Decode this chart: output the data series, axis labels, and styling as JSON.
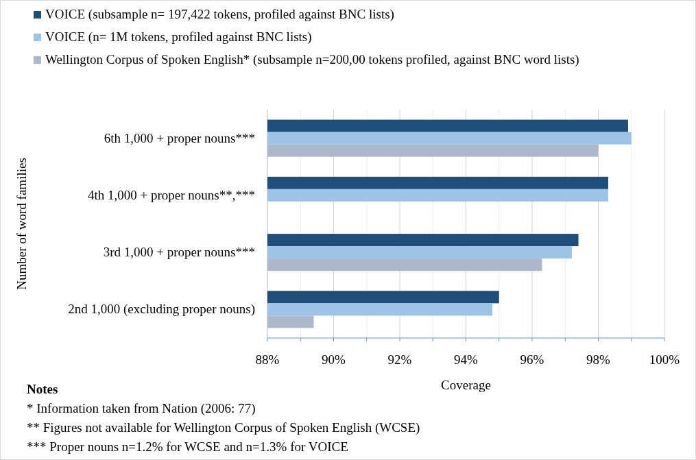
{
  "chart_data": {
    "type": "bar",
    "orientation": "horizontal",
    "categories": [
      "6th 1,000 + proper nouns***",
      "4th 1,000 + proper nouns**,***",
      "3rd 1,000 + proper nouns***",
      "2nd 1,000 (excluding proper nouns)"
    ],
    "series": [
      {
        "name": "VOICE (subsample n= 197,422 tokens, profiled against BNC lists)",
        "color": "#1f4e79",
        "values": [
          98.9,
          98.3,
          97.4,
          95.0
        ]
      },
      {
        "name": "VOICE (n= 1M tokens, profiled against BNC lists)",
        "color": "#9dc3e6",
        "values": [
          99.0,
          98.3,
          97.2,
          94.8
        ]
      },
      {
        "name": "Wellington Corpus of Spoken English*  (subsample n=200,00 tokens profiled, against BNC word lists)",
        "color": "#adb9ca",
        "values": [
          98.0,
          null,
          96.3,
          89.4
        ]
      }
    ],
    "xlim": [
      88,
      100
    ],
    "xticks": [
      {
        "value": 88,
        "label": "88%"
      },
      {
        "value": 89,
        "label": null
      },
      {
        "value": 90,
        "label": "90%"
      },
      {
        "value": 91,
        "label": null
      },
      {
        "value": 92,
        "label": "92%"
      },
      {
        "value": 93,
        "label": null
      },
      {
        "value": 94,
        "label": "94%"
      },
      {
        "value": 95,
        "label": null
      },
      {
        "value": 96,
        "label": "96%"
      },
      {
        "value": 97,
        "label": null
      },
      {
        "value": 98,
        "label": "98%"
      },
      {
        "value": 99,
        "label": null
      },
      {
        "value": 100,
        "label": "100%"
      }
    ],
    "xlabel": "Coverage",
    "ylabel": "Number of word families",
    "grid": "x",
    "legend": "top",
    "annotations": [
      "Notes",
      "* Information taken from Nation (2006: 77)",
      "** Figures not available for Wellington Corpus of Spoken English (WCSE)",
      "*** Proper nouns n=1.2% for WCSE and n=1.3% for VOICE"
    ]
  }
}
